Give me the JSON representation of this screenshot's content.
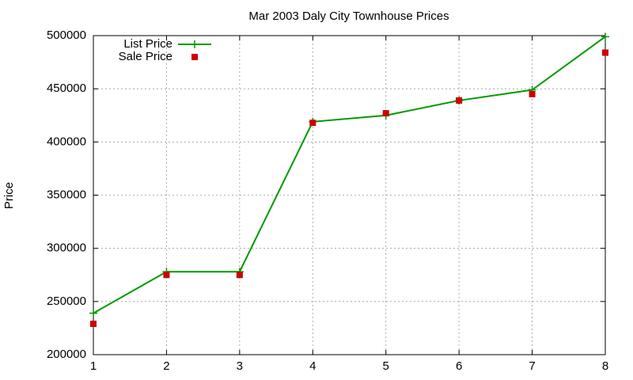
{
  "chart_data": {
    "type": "line",
    "title": "Mar 2003 Daly City Townhouse Prices",
    "ylabel": "Price",
    "x": [
      1,
      2,
      3,
      4,
      5,
      6,
      7,
      8
    ],
    "series": [
      {
        "name": "List Price",
        "color": "#009900",
        "mode": "linespoints",
        "values": [
          239000,
          278000,
          278000,
          419000,
          425000,
          439000,
          449000,
          499000
        ]
      },
      {
        "name": "Sale Price",
        "color": "#cc0000",
        "mode": "points",
        "values": [
          229000,
          275000,
          275000,
          418000,
          427000,
          439000,
          445000,
          484000
        ]
      }
    ],
    "xlim": [
      1,
      8
    ],
    "xticks": [
      1,
      2,
      3,
      4,
      5,
      6,
      7,
      8
    ],
    "ylim": [
      200000,
      500000
    ],
    "yticks": [
      200000,
      250000,
      300000,
      350000,
      400000,
      450000,
      500000
    ],
    "grid": true,
    "legend": "top-left"
  }
}
